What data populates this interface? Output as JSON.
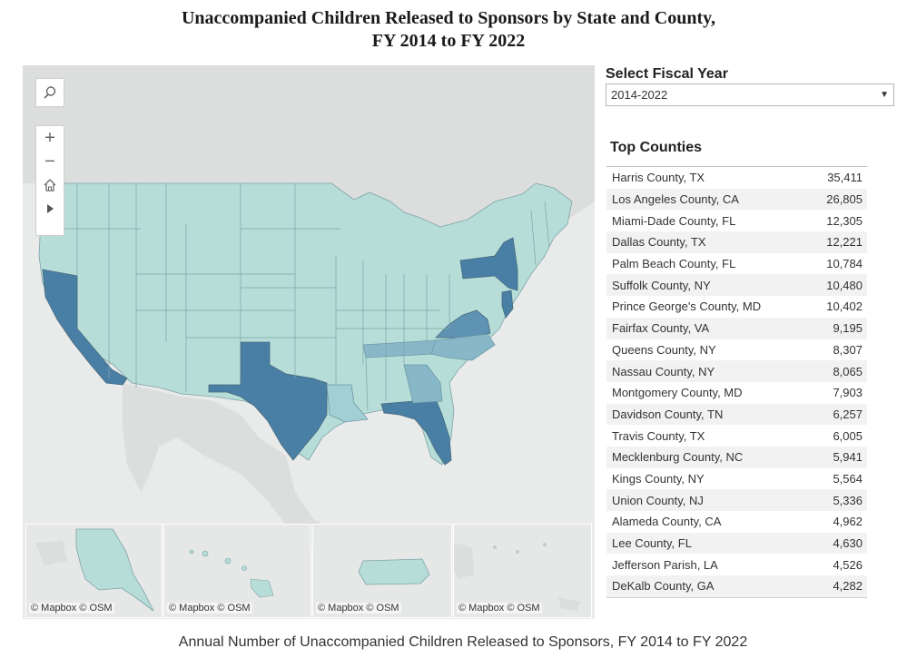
{
  "title": {
    "line1": "Unaccompanied Children Released to Sponsors by State and County,",
    "line2": "FY 2014 to FY 2022"
  },
  "map": {
    "controls": {
      "search_icon": "search-icon",
      "zoom_in_label": "+",
      "zoom_out_label": "−",
      "home_icon": "home-icon",
      "play_icon": "play-icon"
    },
    "attribution": "© Mapbox  © OSM",
    "colors": {
      "base": "#b7ddd8",
      "mid": "#88b8c8",
      "high": "#4a7fa5",
      "land": "#d5d6d6",
      "water": "#e9eaea"
    }
  },
  "fiscal_year": {
    "label": "Select Fiscal Year",
    "selected": "2014-2022"
  },
  "top_counties": {
    "title": "Top Counties",
    "rows": [
      {
        "name": "Harris County, TX",
        "value": "35,411"
      },
      {
        "name": "Los Angeles County, CA",
        "value": "26,805"
      },
      {
        "name": "Miami-Dade County, FL",
        "value": "12,305"
      },
      {
        "name": "Dallas County, TX",
        "value": "12,221"
      },
      {
        "name": "Palm Beach County, FL",
        "value": "10,784"
      },
      {
        "name": "Suffolk County, NY",
        "value": "10,480"
      },
      {
        "name": "Prince George's County, MD",
        "value": "10,402"
      },
      {
        "name": "Fairfax County, VA",
        "value": "9,195"
      },
      {
        "name": "Queens County, NY",
        "value": "8,307"
      },
      {
        "name": "Nassau County, NY",
        "value": "8,065"
      },
      {
        "name": "Montgomery County, MD",
        "value": "7,903"
      },
      {
        "name": "Davidson County, TN",
        "value": "6,257"
      },
      {
        "name": "Travis County, TX",
        "value": "6,005"
      },
      {
        "name": "Mecklenburg County, NC",
        "value": "5,941"
      },
      {
        "name": "Kings County, NY",
        "value": "5,564"
      },
      {
        "name": "Union County, NJ",
        "value": "5,336"
      },
      {
        "name": "Alameda County, CA",
        "value": "4,962"
      },
      {
        "name": "Lee County, FL",
        "value": "4,630"
      },
      {
        "name": "Jefferson Parish, LA",
        "value": "4,526"
      },
      {
        "name": "DeKalb County, GA",
        "value": "4,282"
      }
    ]
  },
  "footer": {
    "title": "Annual Number of Unaccompanied Children Released to Sponsors, FY 2014 to FY 2022"
  }
}
